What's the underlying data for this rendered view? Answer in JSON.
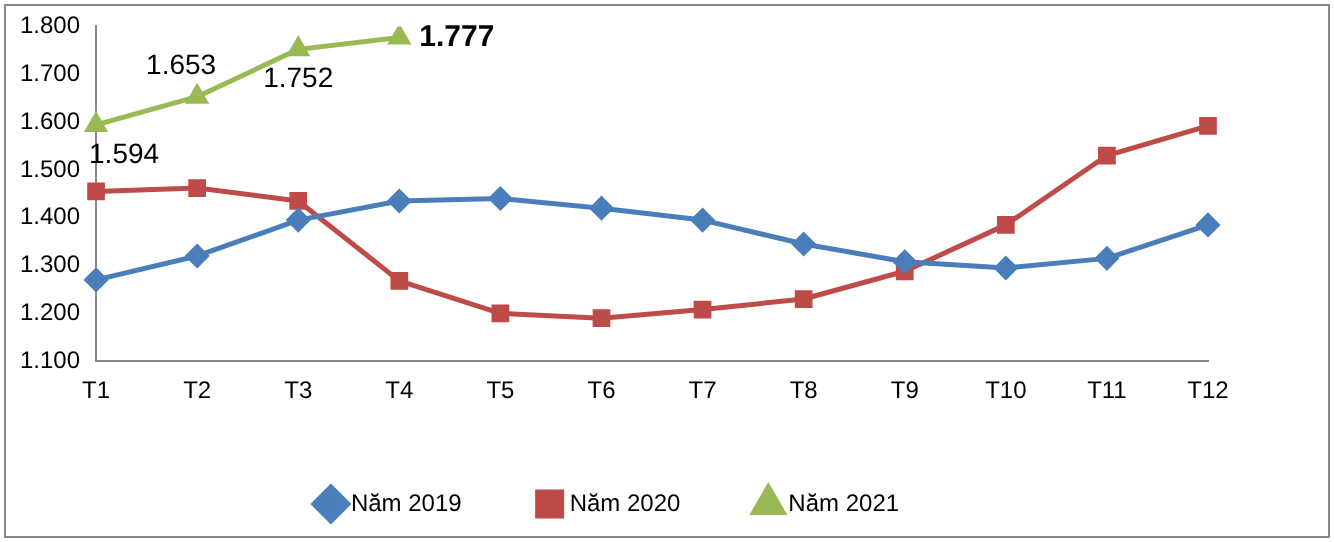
{
  "chart_data": {
    "type": "line",
    "categories": [
      "T1",
      "T2",
      "T3",
      "T4",
      "T5",
      "T6",
      "T7",
      "T8",
      "T9",
      "T10",
      "T11",
      "T12"
    ],
    "ylim": [
      1100,
      1800
    ],
    "yticks": [
      {
        "value": 1100,
        "label": "1.100"
      },
      {
        "value": 1200,
        "label": "1.200"
      },
      {
        "value": 1300,
        "label": "1.300"
      },
      {
        "value": 1400,
        "label": "1.400"
      },
      {
        "value": 1500,
        "label": "1.500"
      },
      {
        "value": 1600,
        "label": "1.600"
      },
      {
        "value": 1700,
        "label": "1.700"
      },
      {
        "value": 1800,
        "label": "1.800"
      }
    ],
    "grid": false,
    "legend": "bottom",
    "line_style": "solid",
    "series": [
      {
        "name": "Năm 2019",
        "color": "#4a7ebb",
        "marker": "diamond",
        "values": [
          1270,
          1320,
          1395,
          1435,
          1440,
          1420,
          1395,
          1345,
          1308,
          1295,
          1315,
          1385
        ]
      },
      {
        "name": "Năm 2020",
        "color": "#be4b48",
        "marker": "square",
        "values": [
          1455,
          1462,
          1435,
          1268,
          1200,
          1190,
          1208,
          1230,
          1288,
          1385,
          1530,
          1592
        ]
      },
      {
        "name": "Năm 2021",
        "color": "#98b954",
        "marker": "triangle",
        "values": [
          1594,
          1653,
          1752,
          1777,
          null,
          null,
          null,
          null,
          null,
          null,
          null,
          null
        ],
        "value_labels": [
          "1.594",
          "1.653",
          "1.752",
          "1.777",
          null,
          null,
          null,
          null,
          null,
          null,
          null,
          null
        ]
      }
    ]
  }
}
